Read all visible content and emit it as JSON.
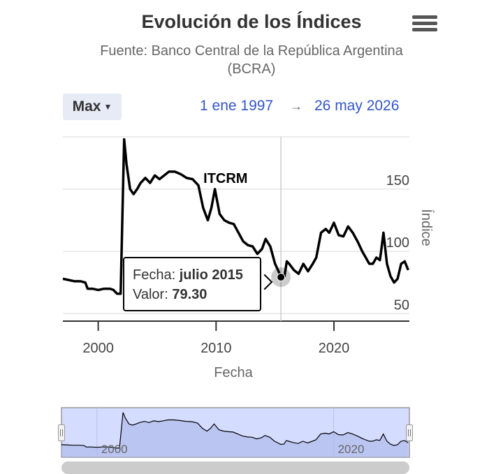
{
  "header": {
    "title": "Evolución de los Índices",
    "subtitle": "Fuente: Banco Central de la República Argentina (BCRA)",
    "menu_icon": "hamburger-menu-icon"
  },
  "range_selector": {
    "button_label": "Max",
    "from_date": "1 ene 1997",
    "separator": "→",
    "to_date": "26 may 2026"
  },
  "tooltip": {
    "fecha_label": "Fecha: ",
    "fecha_value": "julio 2015",
    "valor_label": "Valor: ",
    "valor_value": "79.30"
  },
  "navigator": {
    "x_labels": [
      "2000",
      "2020"
    ]
  },
  "colors": {
    "line": "#000000",
    "grid": "#e6e6e6",
    "navigator_fill": "#ccd6ff",
    "navigator_border": "#999999",
    "link": "#3355cc"
  },
  "chart_data": {
    "type": "line",
    "title": "Evolución de los Índices",
    "subtitle": "Fuente: Banco Central de la República Argentina (BCRA)",
    "xlabel": "Fecha",
    "ylabel": "Índice",
    "xlim": [
      1997.0,
      2026.4
    ],
    "ylim": [
      44,
      192
    ],
    "x_ticks": [
      2000,
      2010,
      2020
    ],
    "y_ticks": [
      50,
      100,
      150
    ],
    "grid": true,
    "series": [
      {
        "name": "ITCRM",
        "x": [
          1997.0,
          1997.5,
          1998.0,
          1998.5,
          1998.9,
          1999.1,
          1999.5,
          2000.0,
          2000.5,
          2001.0,
          2001.3,
          2001.6,
          2001.9,
          2002.2,
          2002.4,
          2002.7,
          2003.0,
          2003.3,
          2003.6,
          2004.0,
          2004.4,
          2004.8,
          2005.2,
          2005.6,
          2006.0,
          2006.5,
          2007.0,
          2007.5,
          2008.0,
          2008.5,
          2008.9,
          2009.3,
          2009.6,
          2009.9,
          2010.3,
          2010.7,
          2011.1,
          2011.5,
          2011.9,
          2012.3,
          2012.7,
          2013.1,
          2013.5,
          2013.9,
          2014.2,
          2014.6,
          2015.0,
          2015.3,
          2015.5,
          2015.8,
          2016.0,
          2016.2,
          2016.6,
          2017.0,
          2017.4,
          2017.8,
          2018.2,
          2018.5,
          2018.9,
          2019.3,
          2019.6,
          2020.0,
          2020.4,
          2020.8,
          2021.2,
          2021.6,
          2022.0,
          2022.4,
          2022.7,
          2023.0,
          2023.3,
          2023.6,
          2023.9,
          2024.0,
          2024.2,
          2024.5,
          2024.8,
          2025.1,
          2025.4,
          2025.7,
          2026.0,
          2026.3
        ],
        "values": [
          78,
          77,
          76,
          76,
          75,
          70,
          70,
          69,
          70,
          70,
          69,
          66,
          66,
          190,
          170,
          150,
          146,
          150,
          155,
          159,
          155,
          161,
          158,
          161,
          164,
          164,
          162,
          159,
          158,
          153,
          135,
          125,
          135,
          150,
          130,
          125,
          123,
          122,
          115,
          108,
          105,
          104,
          98,
          102,
          110,
          104,
          90,
          84,
          79.3,
          80,
          92,
          90,
          85,
          82,
          90,
          84,
          90,
          95,
          115,
          118,
          115,
          123,
          113,
          112,
          120,
          115,
          108,
          100,
          95,
          90,
          90,
          95,
          93,
          100,
          115,
          90,
          80,
          75,
          78,
          90,
          92,
          85
        ]
      }
    ],
    "annotations": [
      {
        "text": "ITCRM",
        "x": 2010.8,
        "y": 155
      }
    ],
    "highlighted_point": {
      "x": 2015.5,
      "y": 79.3
    }
  }
}
